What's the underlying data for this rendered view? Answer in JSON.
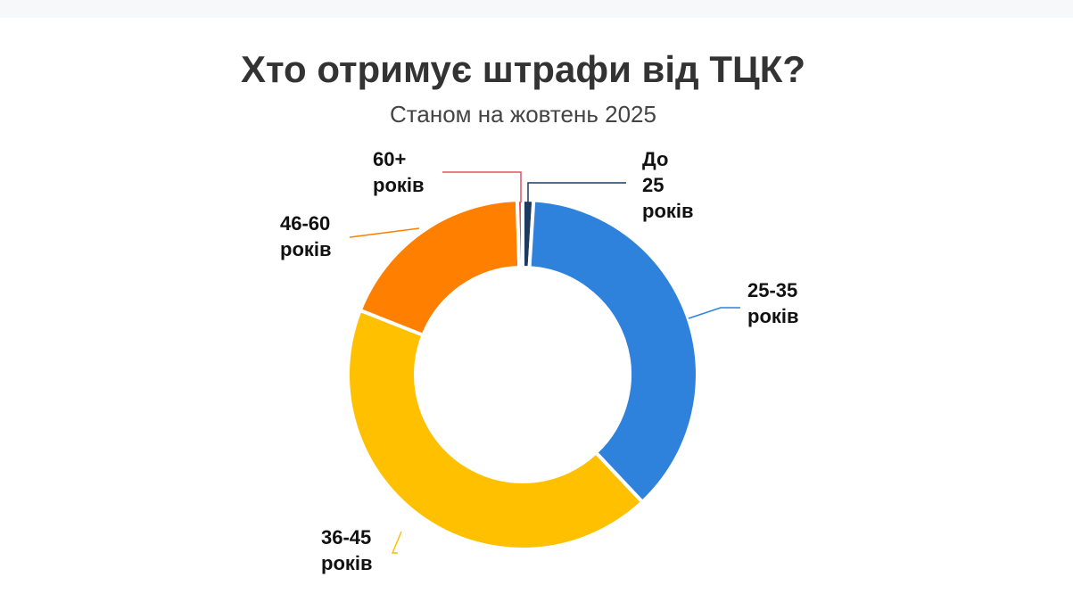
{
  "title": "Хто отримує штрафи від ТЦК?",
  "subtitle": "Станом на жовтень 2025",
  "chart_data": {
    "type": "pie",
    "style": "donut",
    "title": "Хто отримує штрафи від ТЦК?",
    "subtitle": "Станом на жовтень 2025",
    "data_labels_shown": false,
    "slices": [
      {
        "label": [
          "До",
          "25",
          "років"
        ],
        "value": 1,
        "color": "#1f3a5f"
      },
      {
        "label": [
          "25-35",
          "років"
        ],
        "value": 37,
        "color": "#2e82dc"
      },
      {
        "label": [
          "36-45",
          "років"
        ],
        "value": 43,
        "color": "#ffc000"
      },
      {
        "label": [
          "46-60",
          "років"
        ],
        "value": 18.5,
        "color": "#ff8000"
      },
      {
        "label": [
          "60+",
          "років"
        ],
        "value": 0.5,
        "color": "#e05561"
      }
    ]
  }
}
